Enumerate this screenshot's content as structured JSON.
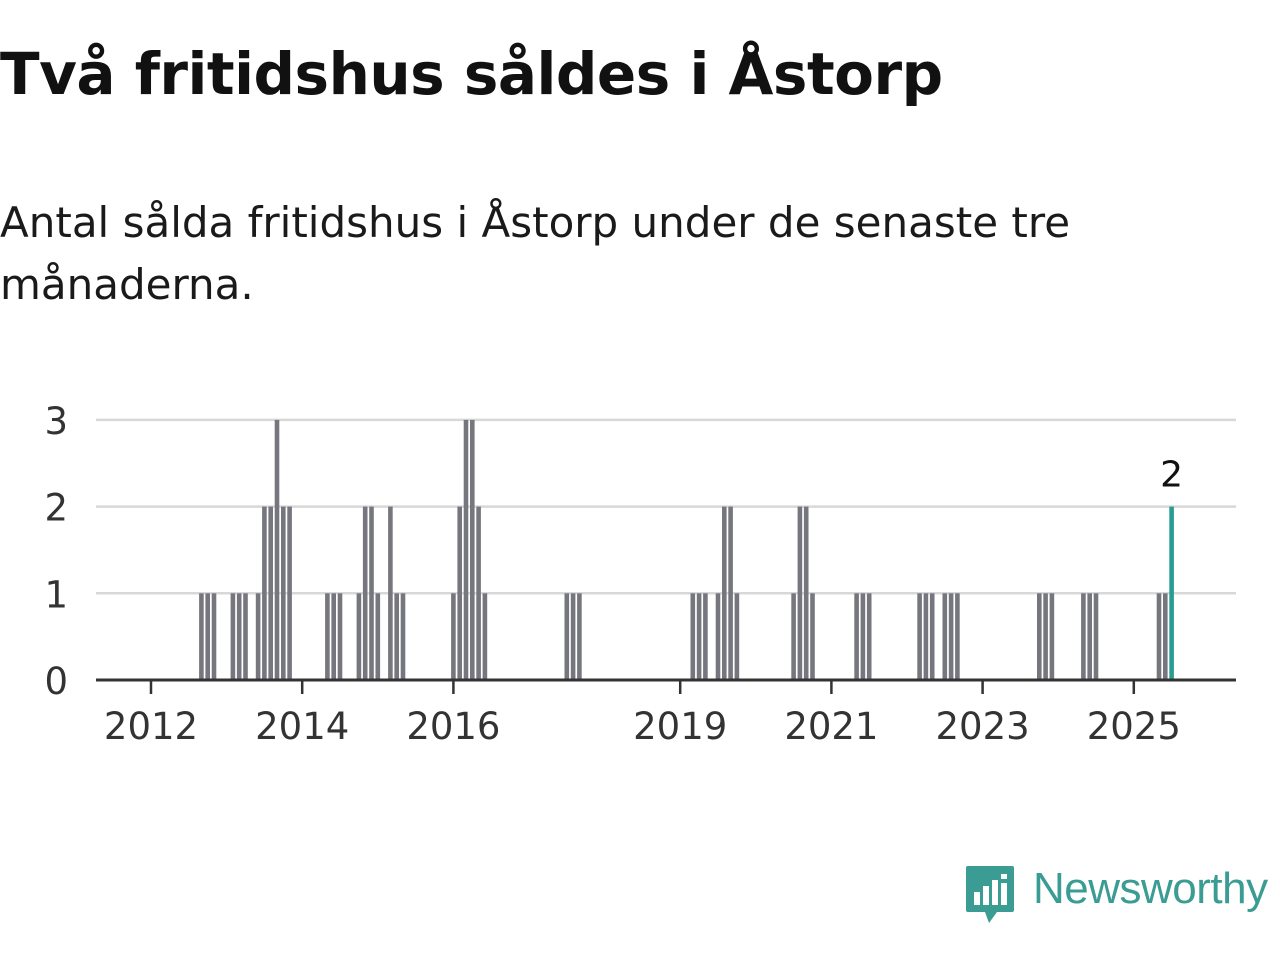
{
  "title": "Två fritidshus såldes i Åstorp",
  "subtitle": "Antal sålda fritidshus i Åstorp under de senaste tre månaderna.",
  "brand": {
    "name": "Newsworthy",
    "icon": "newsworthy-logo-icon",
    "color": "#3a9c93"
  },
  "chart_data": {
    "type": "bar",
    "title": "",
    "xlabel": "",
    "ylabel": "",
    "x_tick_labels": [
      "2012",
      "2014",
      "2016",
      "2019",
      "2021",
      "2023",
      "2025"
    ],
    "y_ticks": [
      0,
      1,
      2,
      3
    ],
    "ylim": [
      0,
      3
    ],
    "grid": true,
    "bar_color": "#76767e",
    "highlight_color": "#2a9d93",
    "annotation": "2",
    "x_unit": "month",
    "xlim": [
      "2011-06",
      "2026-06"
    ],
    "series": [
      {
        "name": "",
        "values": [
          {
            "x": "2012-09",
            "y": 1
          },
          {
            "x": "2012-10",
            "y": 1
          },
          {
            "x": "2012-11",
            "y": 1
          },
          {
            "x": "2013-02",
            "y": 1
          },
          {
            "x": "2013-03",
            "y": 1
          },
          {
            "x": "2013-04",
            "y": 1
          },
          {
            "x": "2013-06",
            "y": 1
          },
          {
            "x": "2013-07",
            "y": 2
          },
          {
            "x": "2013-08",
            "y": 2
          },
          {
            "x": "2013-09",
            "y": 3
          },
          {
            "x": "2013-10",
            "y": 2
          },
          {
            "x": "2013-11",
            "y": 2
          },
          {
            "x": "2014-05",
            "y": 1
          },
          {
            "x": "2014-06",
            "y": 1
          },
          {
            "x": "2014-07",
            "y": 1
          },
          {
            "x": "2014-10",
            "y": 1
          },
          {
            "x": "2014-11",
            "y": 2
          },
          {
            "x": "2014-12",
            "y": 2
          },
          {
            "x": "2015-01",
            "y": 1
          },
          {
            "x": "2015-03",
            "y": 2
          },
          {
            "x": "2015-04",
            "y": 1
          },
          {
            "x": "2015-05",
            "y": 1
          },
          {
            "x": "2016-01",
            "y": 1
          },
          {
            "x": "2016-02",
            "y": 2
          },
          {
            "x": "2016-03",
            "y": 3
          },
          {
            "x": "2016-04",
            "y": 3
          },
          {
            "x": "2016-05",
            "y": 2
          },
          {
            "x": "2016-06",
            "y": 1
          },
          {
            "x": "2017-07",
            "y": 1
          },
          {
            "x": "2017-08",
            "y": 1
          },
          {
            "x": "2017-09",
            "y": 1
          },
          {
            "x": "2019-03",
            "y": 1
          },
          {
            "x": "2019-04",
            "y": 1
          },
          {
            "x": "2019-05",
            "y": 1
          },
          {
            "x": "2019-07",
            "y": 1
          },
          {
            "x": "2019-08",
            "y": 2
          },
          {
            "x": "2019-09",
            "y": 2
          },
          {
            "x": "2019-10",
            "y": 1
          },
          {
            "x": "2020-07",
            "y": 1
          },
          {
            "x": "2020-08",
            "y": 2
          },
          {
            "x": "2020-09",
            "y": 2
          },
          {
            "x": "2020-10",
            "y": 1
          },
          {
            "x": "2021-05",
            "y": 1
          },
          {
            "x": "2021-06",
            "y": 1
          },
          {
            "x": "2021-07",
            "y": 1
          },
          {
            "x": "2022-03",
            "y": 1
          },
          {
            "x": "2022-04",
            "y": 1
          },
          {
            "x": "2022-05",
            "y": 1
          },
          {
            "x": "2022-07",
            "y": 1
          },
          {
            "x": "2022-08",
            "y": 1
          },
          {
            "x": "2022-09",
            "y": 1
          },
          {
            "x": "2023-10",
            "y": 1
          },
          {
            "x": "2023-11",
            "y": 1
          },
          {
            "x": "2023-12",
            "y": 1
          },
          {
            "x": "2024-05",
            "y": 1
          },
          {
            "x": "2024-06",
            "y": 1
          },
          {
            "x": "2024-07",
            "y": 1
          },
          {
            "x": "2025-05",
            "y": 1
          },
          {
            "x": "2025-06",
            "y": 1
          },
          {
            "x": "2025-07",
            "y": 2
          }
        ]
      }
    ]
  }
}
